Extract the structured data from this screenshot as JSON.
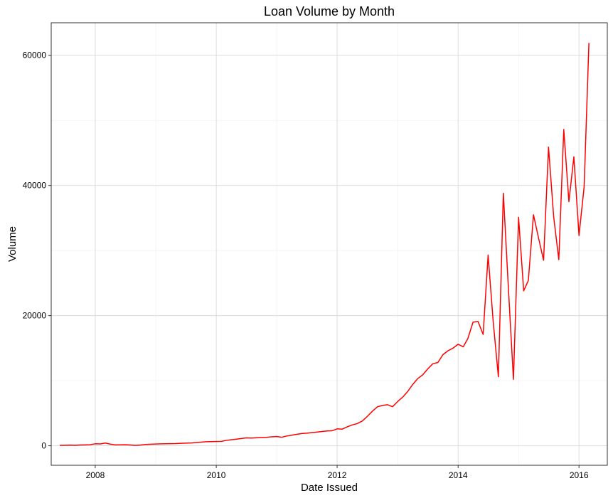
{
  "chart_data": {
    "type": "line",
    "title": "Loan Volume by Month",
    "xlabel": "Date Issued",
    "ylabel": "Volume",
    "xlim": [
      "2007-04-10",
      "2016-06-20"
    ],
    "ylim": [
      -3000,
      65000
    ],
    "x_ticks": [
      {
        "date": "2008-01-01",
        "label": "2008"
      },
      {
        "date": "2010-01-01",
        "label": "2010"
      },
      {
        "date": "2012-01-01",
        "label": "2012"
      },
      {
        "date": "2014-01-01",
        "label": "2014"
      },
      {
        "date": "2016-01-01",
        "label": "2016"
      }
    ],
    "x_minor_ticks": [
      "2007-01-01",
      "2009-01-01",
      "2011-01-01",
      "2013-01-01",
      "2015-01-01"
    ],
    "y_ticks": [
      0,
      20000,
      40000,
      60000
    ],
    "y_tick_labels": [
      "0",
      "20000",
      "40000",
      "60000"
    ],
    "y_minor_ticks": [
      10000,
      30000,
      50000
    ],
    "grid": true,
    "colors": {
      "line": "#ff0000",
      "grid": "#d9d9d9",
      "border": "#333333"
    },
    "series": [
      {
        "x": [
          "2007-06",
          "2007-07",
          "2007-08",
          "2007-09",
          "2007-10",
          "2007-11",
          "2007-12",
          "2008-01",
          "2008-02",
          "2008-03",
          "2008-04",
          "2008-05",
          "2008-06",
          "2008-07",
          "2008-08",
          "2008-09",
          "2008-10",
          "2008-11",
          "2008-12",
          "2009-01",
          "2009-02",
          "2009-03",
          "2009-04",
          "2009-05",
          "2009-06",
          "2009-07",
          "2009-08",
          "2009-09",
          "2009-10",
          "2009-11",
          "2009-12",
          "2010-01",
          "2010-02",
          "2010-03",
          "2010-04",
          "2010-05",
          "2010-06",
          "2010-07",
          "2010-08",
          "2010-09",
          "2010-10",
          "2010-11",
          "2010-12",
          "2011-01",
          "2011-02",
          "2011-03",
          "2011-04",
          "2011-05",
          "2011-06",
          "2011-07",
          "2011-08",
          "2011-09",
          "2011-10",
          "2011-11",
          "2011-12",
          "2012-01",
          "2012-02",
          "2012-03",
          "2012-04",
          "2012-05",
          "2012-06",
          "2012-07",
          "2012-08",
          "2012-09",
          "2012-10",
          "2012-11",
          "2012-12",
          "2013-01",
          "2013-02",
          "2013-03",
          "2013-04",
          "2013-05",
          "2013-06",
          "2013-07",
          "2013-08",
          "2013-09",
          "2013-10",
          "2013-11",
          "2013-12",
          "2014-01",
          "2014-02",
          "2014-03",
          "2014-04",
          "2014-05",
          "2014-06",
          "2014-07",
          "2014-08",
          "2014-09",
          "2014-10",
          "2014-11",
          "2014-12",
          "2015-01",
          "2015-02",
          "2015-03",
          "2015-04",
          "2015-05",
          "2015-06",
          "2015-07",
          "2015-08",
          "2015-09",
          "2015-10",
          "2015-11",
          "2015-12",
          "2016-01",
          "2016-02",
          "2016-03"
        ],
        "values": [
          60,
          80,
          100,
          70,
          110,
          130,
          160,
          300,
          280,
          420,
          250,
          130,
          140,
          160,
          110,
          60,
          110,
          200,
          240,
          260,
          290,
          310,
          320,
          340,
          380,
          400,
          430,
          480,
          550,
          620,
          640,
          660,
          680,
          820,
          920,
          1010,
          1110,
          1210,
          1180,
          1220,
          1260,
          1290,
          1380,
          1420,
          1310,
          1490,
          1620,
          1760,
          1880,
          1930,
          2010,
          2100,
          2190,
          2270,
          2300,
          2600,
          2550,
          2900,
          3200,
          3400,
          3800,
          4500,
          5300,
          6000,
          6200,
          6300,
          6000,
          6800,
          7500,
          8300,
          9400,
          10300,
          10900,
          11800,
          12600,
          12800,
          14000,
          14600,
          15000,
          15600,
          15200,
          16500,
          19000,
          19100,
          17100,
          29300,
          19000,
          10600,
          38800,
          24000,
          10200,
          35100,
          23800,
          25400,
          35500,
          32000,
          28500,
          45900,
          35200,
          28600,
          48600,
          37500,
          44400,
          32300,
          39800,
          61900
        ]
      }
    ]
  }
}
